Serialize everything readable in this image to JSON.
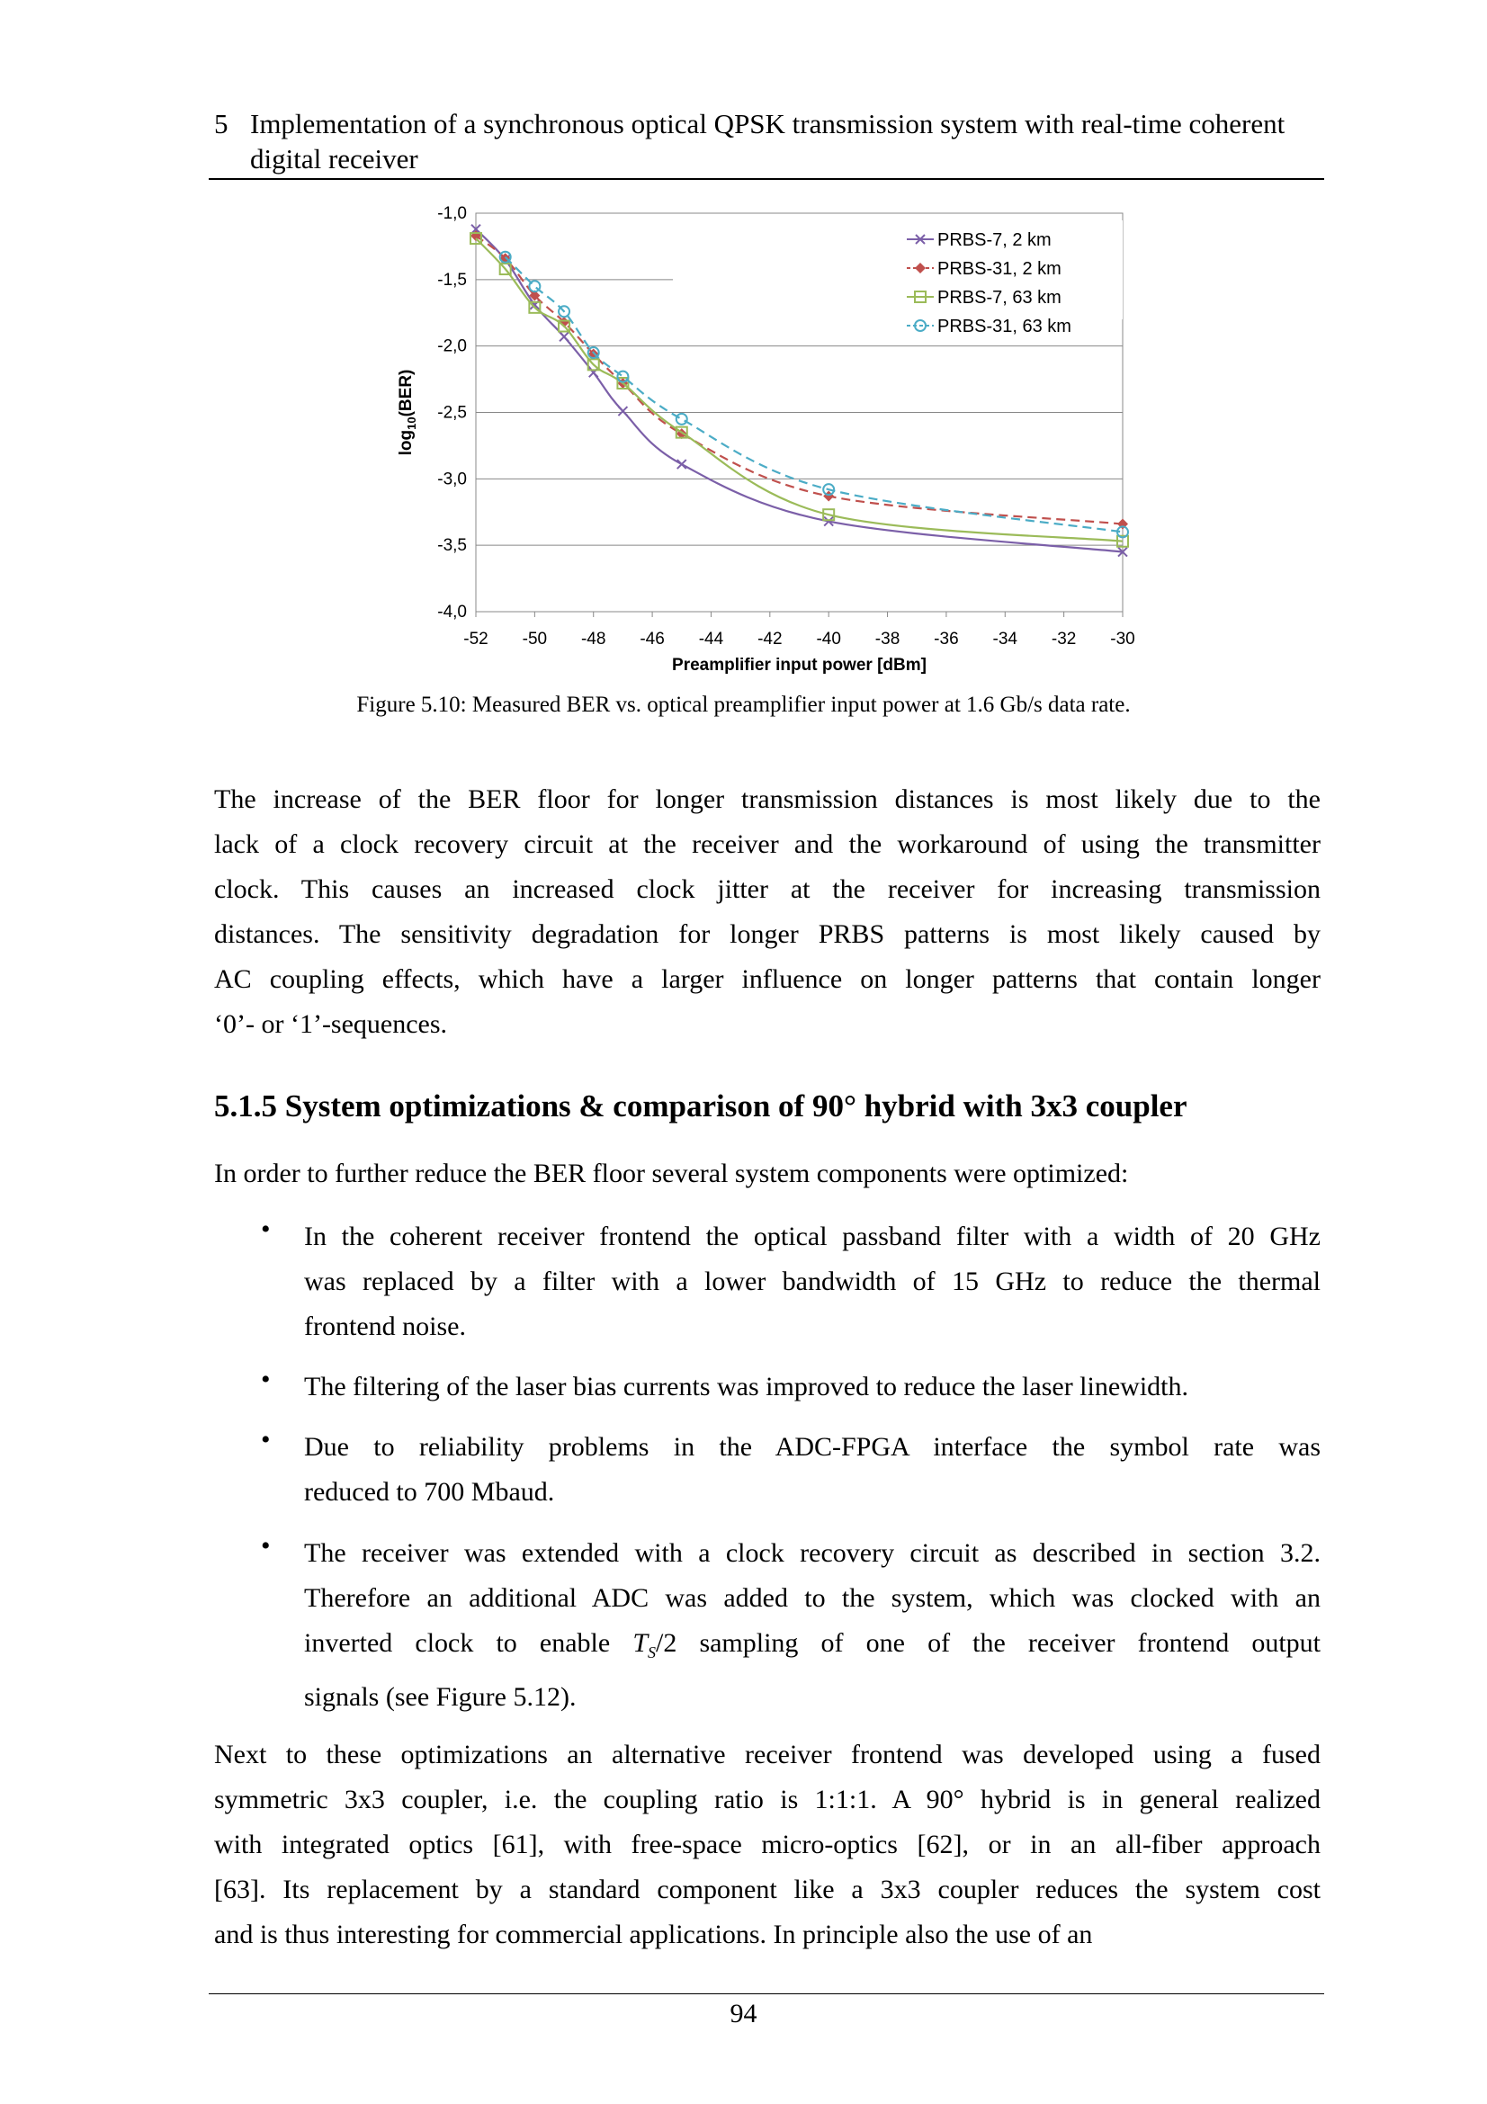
{
  "header": {
    "number": "5",
    "title": "Implementation of a synchronous optical QPSK transmission system with real-time coherent digital receiver"
  },
  "figure": {
    "caption": "Figure 5.10: Measured BER vs. optical preamplifier input power at 1.6 Gb/s data rate."
  },
  "chart_data": {
    "type": "line",
    "title": "",
    "xlabel": "Preamplifier input power [dBm]",
    "ylabel": "log10(BER)",
    "xlim": [
      -52,
      -30
    ],
    "ylim": [
      -4.0,
      -1.0
    ],
    "xticks": [
      "-52",
      "-50",
      "-48",
      "-46",
      "-44",
      "-42",
      "-40",
      "-38",
      "-36",
      "-34",
      "-32",
      "-30"
    ],
    "yticks": [
      "-1,0",
      "-1,5",
      "-2,0",
      "-2,5",
      "-3,0",
      "-3,5",
      "-4,0"
    ],
    "grid": "horizontal",
    "legend": "top-right",
    "series": [
      {
        "name": "PRBS-7, 2 km",
        "color": "#7b5fa8",
        "marker": "x",
        "dash": false,
        "x": [
          -52,
          -51,
          -50,
          -49,
          -48,
          -47,
          -45,
          -40,
          -30
        ],
        "y": [
          -1.12,
          -1.35,
          -1.69,
          -1.93,
          -2.2,
          -2.49,
          -2.89,
          -3.32,
          -3.55
        ]
      },
      {
        "name": "PRBS-31, 2 km",
        "color": "#c0504d",
        "marker": "diamond",
        "dash": true,
        "x": [
          -52,
          -51,
          -50,
          -49,
          -48,
          -47,
          -45,
          -40,
          -30
        ],
        "y": [
          -1.17,
          -1.34,
          -1.62,
          -1.82,
          -2.06,
          -2.28,
          -2.66,
          -3.13,
          -3.34
        ]
      },
      {
        "name": "PRBS-7, 63 km",
        "color": "#9bbb59",
        "marker": "square",
        "dash": false,
        "x": [
          -52,
          -51,
          -50,
          -49,
          -48,
          -47,
          -45,
          -40,
          -30
        ],
        "y": [
          -1.19,
          -1.42,
          -1.71,
          -1.85,
          -2.14,
          -2.28,
          -2.65,
          -3.27,
          -3.47
        ]
      },
      {
        "name": "PRBS-31, 63 km",
        "color": "#4bacc6",
        "marker": "circle",
        "dash": true,
        "x": [
          -51,
          -50,
          -49,
          -48,
          -47,
          -45,
          -40,
          -30
        ],
        "y": [
          -1.33,
          -1.55,
          -1.74,
          -2.05,
          -2.23,
          -2.55,
          -3.08,
          -3.4
        ]
      }
    ]
  },
  "para1": [
    "The increase of the BER floor for longer transmission distances is most likely due to the",
    "lack of a clock recovery circuit at the receiver and the workaround of using the transmitter",
    "clock. This causes an increased clock jitter at the receiver for increasing transmission",
    "distances. The sensitivity degradation for longer PRBS patterns is most likely caused by",
    "AC coupling effects, which have a larger influence on longer patterns that contain longer",
    "‘0’- or ‘1’-sequences."
  ],
  "section": {
    "title": "5.1.5  System optimizations & comparison of 90° hybrid with 3x3 coupler"
  },
  "intro": "In order to further reduce the BER floor several system components were optimized:",
  "bullets": [
    [
      "In the coherent receiver frontend the optical passband filter with a width of 20 GHz",
      "was replaced by a filter with a lower bandwidth of 15 GHz to reduce the thermal",
      "frontend noise."
    ],
    [
      "The filtering of the laser bias currents was improved to reduce the laser linewidth."
    ],
    [
      "Due to reliability problems in the ADC-FPGA interface the symbol rate was",
      "reduced to 700 Mbaud."
    ],
    [
      "The receiver was extended with a clock recovery circuit as described in section 3.2.",
      "Therefore an additional ADC was added to the system, which was clocked with an",
      "inverted clock to enable T_S/2 sampling of one of the receiver frontend output",
      "signals (see Figure 5.12)."
    ]
  ],
  "bullet_symbol": "•",
  "para2": [
    "Next to these optimizations an alternative receiver frontend was developed using a fused",
    "symmetric 3x3 coupler, i.e. the coupling ratio is 1:1:1. A 90° hybrid is in general realized",
    "with integrated optics [61], with free-space micro-optics [62], or in an all-fiber approach",
    "[63]. Its replacement by a standard component like a 3x3 coupler reduces the system cost",
    "and is thus interesting for commercial applications. In principle also the use of an"
  ],
  "page_number": "94"
}
